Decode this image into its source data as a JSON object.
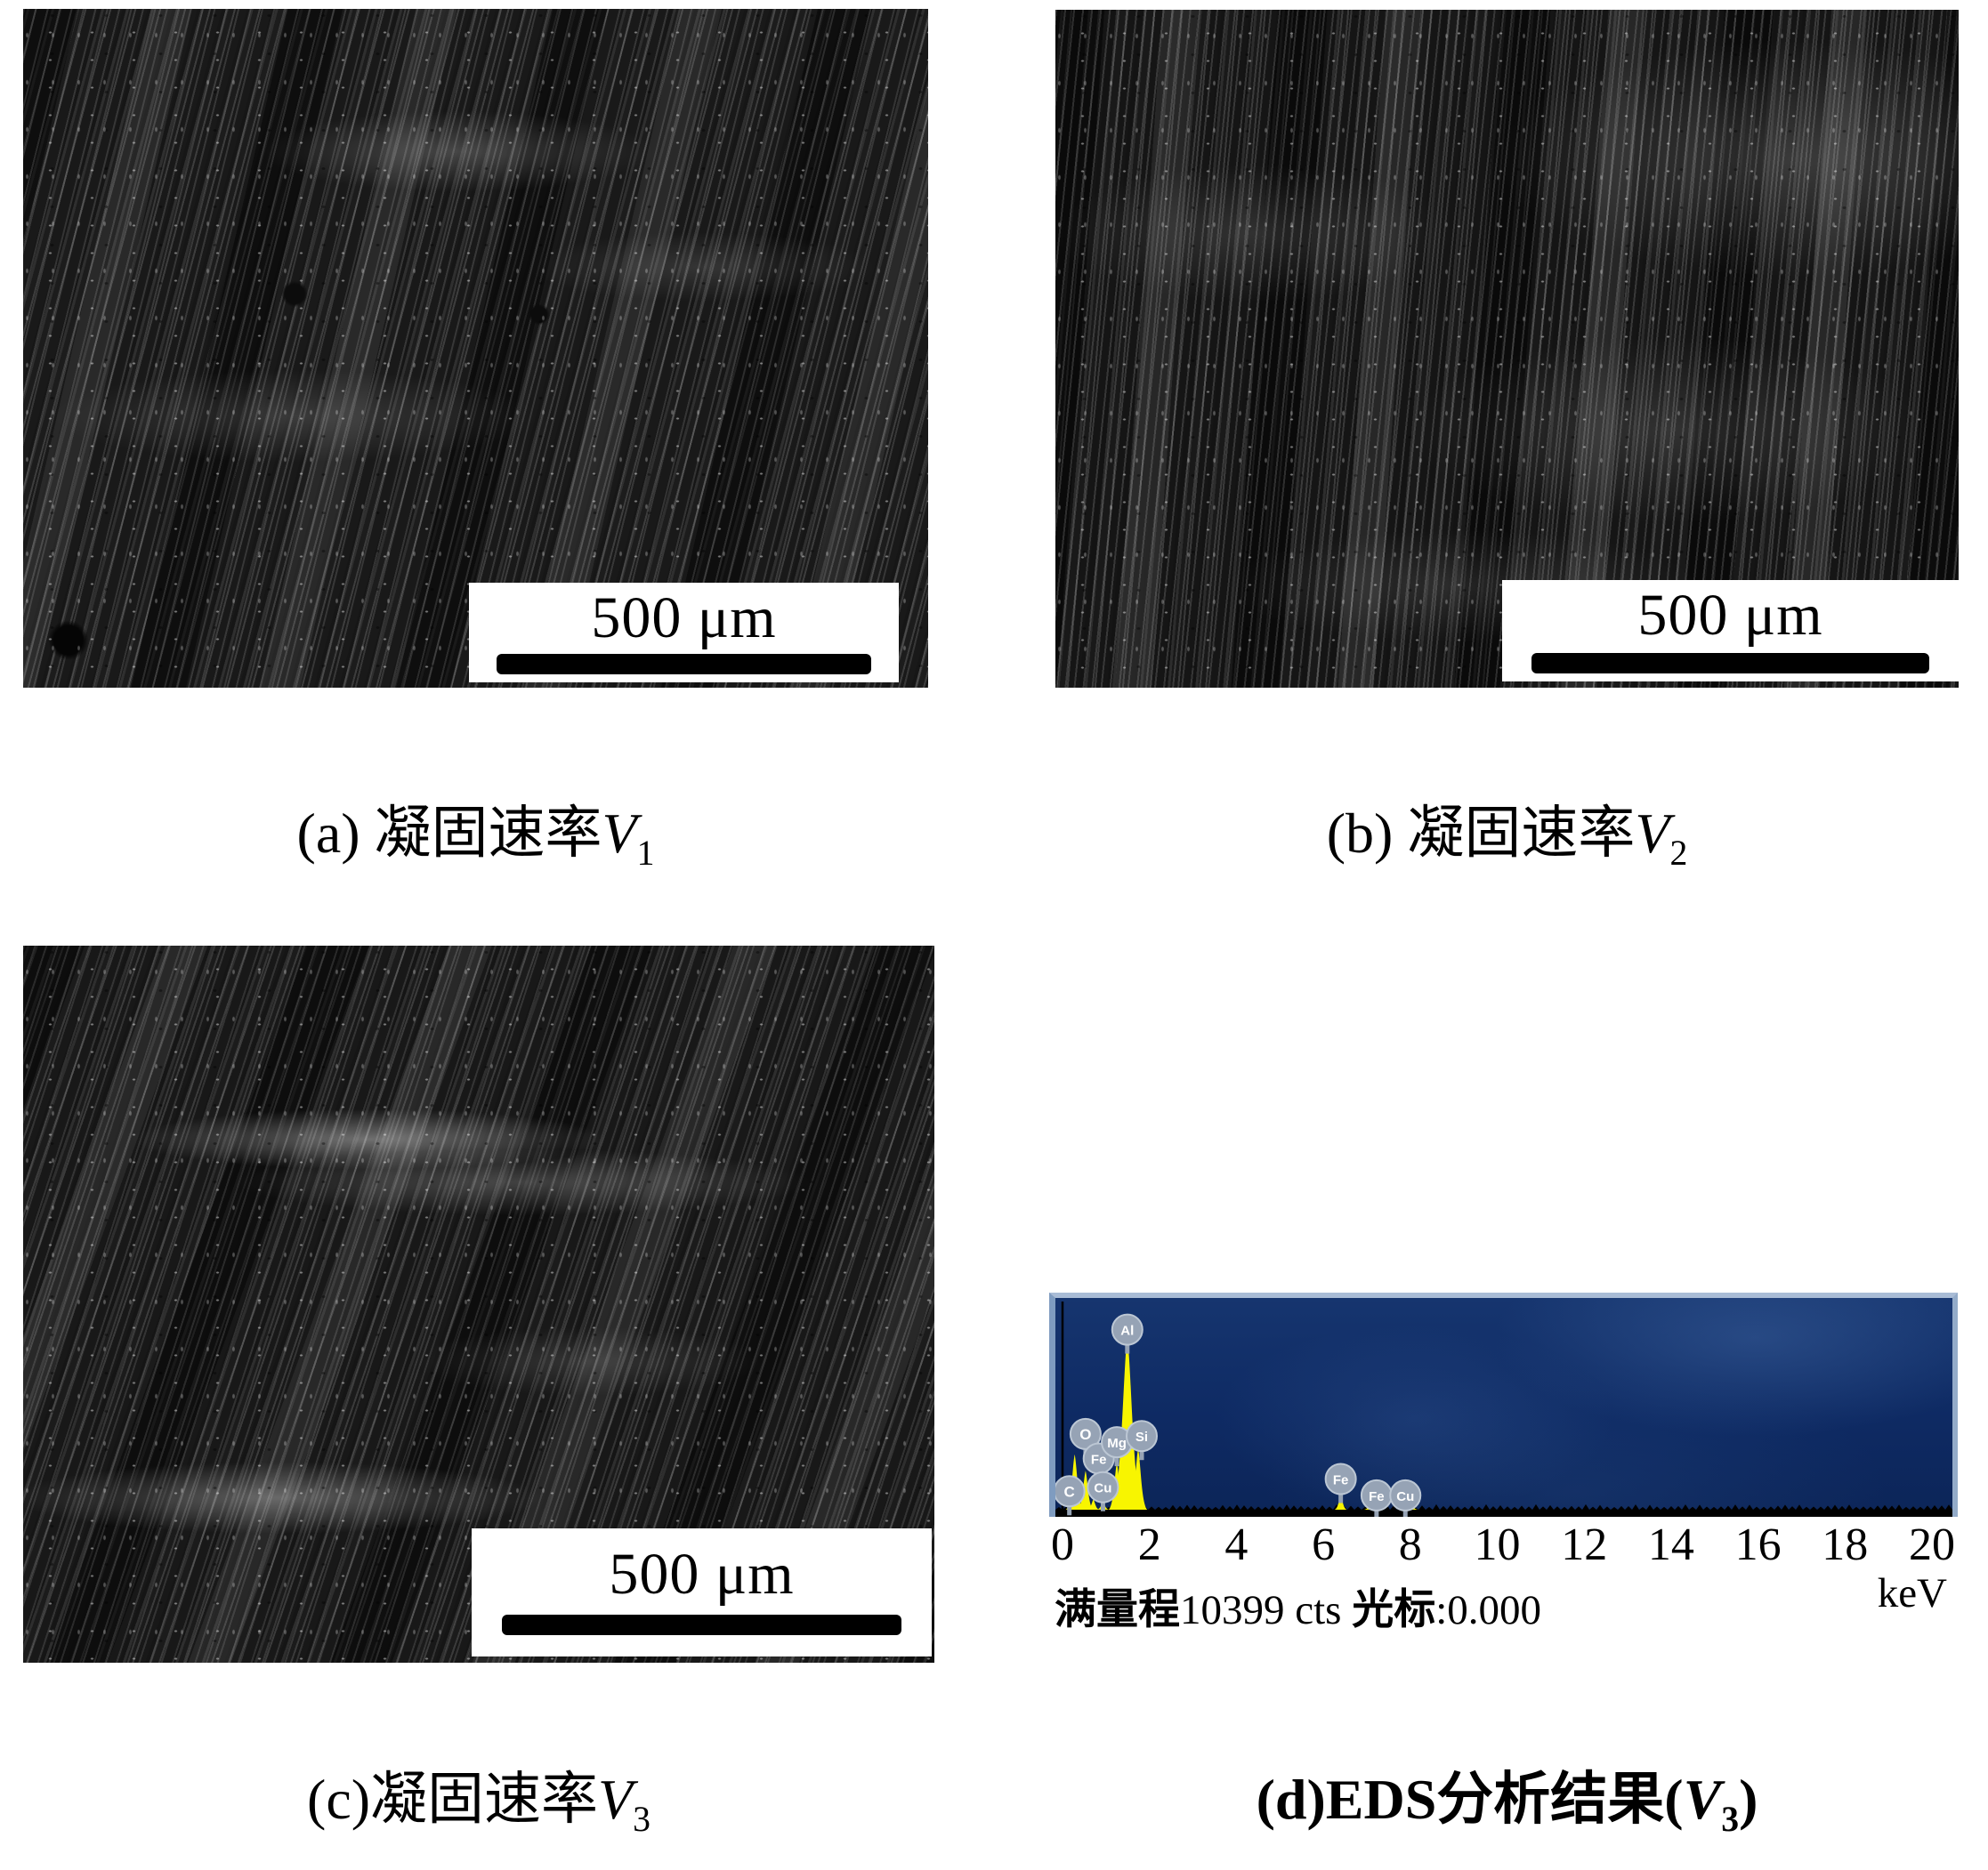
{
  "figure_type": "journal-figure",
  "panels": {
    "a": {
      "kind": "sem-micrograph",
      "caption_pre": "(a) 凝固速率",
      "caption_var": "V",
      "caption_sub": "1",
      "caption_post": "",
      "scalebar_label": "500 μm"
    },
    "b": {
      "kind": "sem-micrograph",
      "caption_pre": "(b) 凝固速率",
      "caption_var": "V",
      "caption_sub": "2",
      "caption_post": "",
      "scalebar_label": "500 μm"
    },
    "c": {
      "kind": "sem-micrograph",
      "caption_pre": "(c)凝固速率",
      "caption_var": "V",
      "caption_sub": "3",
      "caption_post": "",
      "scalebar_label": "500 μm"
    },
    "d": {
      "kind": "eds-spectrum",
      "caption_pre": "(d)EDS分析结果(",
      "caption_var": "V",
      "caption_sub": "3",
      "caption_post": ")"
    }
  },
  "chart_data": {
    "type": "line",
    "title": "EDS analysis result (V3)",
    "xlabel": "keV",
    "xlim": [
      0,
      20
    ],
    "x_ticks": [
      0,
      2,
      4,
      6,
      8,
      10,
      12,
      14,
      16,
      18,
      20
    ],
    "grid": false,
    "legend": "none",
    "full_scale_label": "满量程",
    "full_scale_value": "10399 cts",
    "cursor_label": "光标",
    "cursor_value": ":0.000",
    "unit_label": "keV",
    "peaks": [
      {
        "element": "O",
        "keV": 0.53,
        "rel_height": 0.19,
        "label_y": 0.37,
        "label_dx": 0
      },
      {
        "element": "Fe",
        "keV": 0.71,
        "rel_height": 0.05,
        "label_y": 0.25,
        "label_dx": 6
      },
      {
        "element": "C",
        "keV": 0.28,
        "rel_height": 0.27,
        "label_y": 0.09,
        "label_dx": -6
      },
      {
        "element": "Cu",
        "keV": 0.93,
        "rel_height": 0.04,
        "label_y": 0.11,
        "label_dx": 0
      },
      {
        "element": "Mg",
        "keV": 1.25,
        "rel_height": 0.23,
        "label_y": 0.33,
        "label_dx": 0
      },
      {
        "element": "Si",
        "keV": 1.74,
        "rel_height": 0.3,
        "label_y": 0.36,
        "label_dx": 4
      },
      {
        "element": "Al",
        "keV": 1.49,
        "rel_height": 0.85,
        "label_y": 0.88,
        "label_dx": 0
      },
      {
        "element": "Fe",
        "keV": 6.4,
        "rel_height": 0.07,
        "label_y": 0.15,
        "label_dx": 0
      },
      {
        "element": "Fe",
        "keV": 7.06,
        "rel_height": 0.02,
        "label_y": 0.07,
        "label_dx": 8
      },
      {
        "element": "Cu",
        "keV": 8.05,
        "rel_height": 0.015,
        "label_y": 0.07,
        "label_dx": -8
      }
    ],
    "colors": {
      "background": "#0e2a63",
      "bevel": "#a9bcd6",
      "peak_fill": "#f8f500",
      "badge_fill": "#96a3b5",
      "badge_ring": "#bcc7d4",
      "badge_text": "#ffffff",
      "axis_text": "#000000"
    }
  }
}
